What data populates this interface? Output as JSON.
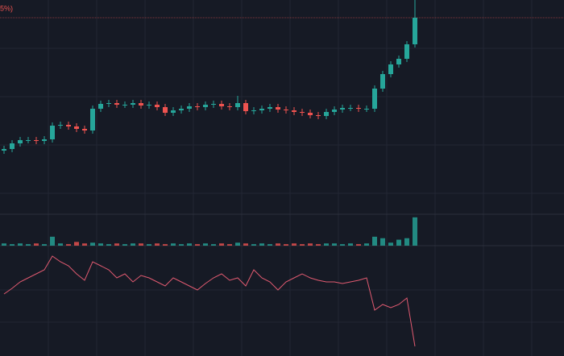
{
  "chart_data": [
    {
      "type": "candlestick",
      "title": "5%)",
      "up_color": "#26a69a",
      "down_color": "#ef5350",
      "ylim": [
        0,
        265
      ],
      "open": [
        78,
        80,
        87,
        91,
        91,
        90,
        92,
        109,
        110,
        108,
        105,
        103,
        130,
        136,
        137,
        135,
        135,
        137,
        134,
        135,
        132,
        125,
        128,
        130,
        133,
        132,
        135,
        136,
        133,
        132,
        137,
        127,
        128,
        130,
        132,
        129,
        128,
        126,
        125,
        122,
        121,
        126,
        129,
        131,
        131,
        130,
        130,
        155,
        173,
        185,
        192,
        210
      ],
      "high": [
        84,
        91,
        95,
        95,
        95,
        96,
        113,
        114,
        114,
        112,
        109,
        134,
        140,
        141,
        141,
        139,
        141,
        141,
        139,
        139,
        136,
        132,
        134,
        137,
        137,
        139,
        140,
        140,
        137,
        146,
        141,
        132,
        134,
        136,
        136,
        133,
        132,
        130,
        129,
        126,
        130,
        133,
        135,
        135,
        135,
        134,
        159,
        177,
        189,
        196,
        214,
        265
      ],
      "low": [
        74,
        76,
        83,
        87,
        86,
        86,
        88,
        105,
        104,
        101,
        99,
        99,
        126,
        132,
        131,
        131,
        131,
        130,
        130,
        128,
        121,
        121,
        124,
        126,
        128,
        128,
        131,
        129,
        128,
        128,
        123,
        123,
        124,
        126,
        125,
        124,
        122,
        121,
        118,
        117,
        117,
        122,
        125,
        127,
        126,
        126,
        126,
        151,
        169,
        181,
        188,
        206
      ],
      "close": [
        80,
        87,
        91,
        91,
        90,
        92,
        109,
        110,
        108,
        105,
        103,
        130,
        136,
        137,
        135,
        135,
        137,
        134,
        135,
        132,
        125,
        128,
        130,
        133,
        132,
        135,
        136,
        133,
        132,
        137,
        127,
        128,
        130,
        132,
        129,
        128,
        126,
        125,
        122,
        121,
        126,
        129,
        131,
        131,
        130,
        130,
        155,
        173,
        185,
        192,
        210,
        243
      ]
    },
    {
      "type": "bar",
      "ylim": [
        0,
        40
      ],
      "values": [
        3,
        2,
        3,
        2,
        3,
        2,
        12,
        3,
        2,
        5,
        3,
        4,
        3,
        2,
        3,
        2,
        3,
        3,
        2,
        3,
        2,
        3,
        2,
        3,
        2,
        3,
        2,
        3,
        2,
        4,
        3,
        2,
        3,
        2,
        3,
        2,
        3,
        2,
        3,
        2,
        3,
        3,
        2,
        3,
        2,
        3,
        12,
        10,
        4,
        8,
        10,
        38
      ]
    },
    {
      "type": "line",
      "color": "#e05a70",
      "ylim": [
        0,
        135
      ],
      "values": [
        75,
        82,
        90,
        95,
        100,
        105,
        122,
        115,
        110,
        100,
        92,
        115,
        110,
        105,
        95,
        100,
        90,
        98,
        95,
        90,
        85,
        95,
        90,
        85,
        80,
        88,
        95,
        100,
        92,
        95,
        85,
        105,
        95,
        90,
        80,
        90,
        95,
        100,
        95,
        92,
        90,
        90,
        88,
        90,
        92,
        95,
        55,
        62,
        58,
        62,
        70,
        10
      ]
    }
  ]
}
